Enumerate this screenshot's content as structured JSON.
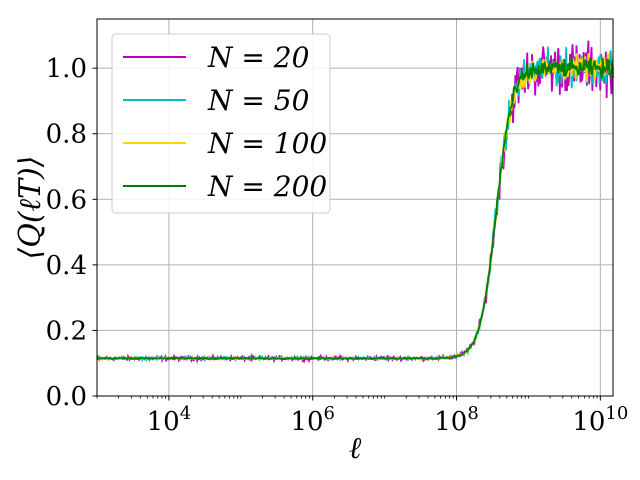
{
  "chart_data": {
    "type": "line",
    "xlabel": "ℓ",
    "ylabel": "⟨Q(ℓT)⟩",
    "xscale": "log",
    "xlim": [
      1000,
      15000000000
    ],
    "ylim": [
      0.0,
      1.15
    ],
    "grid": true,
    "legend_position": "top-left",
    "x_ticks": [
      {
        "value": 10000,
        "base": "10",
        "exp": "4"
      },
      {
        "value": 1000000,
        "base": "10",
        "exp": "6"
      },
      {
        "value": 100000000,
        "base": "10",
        "exp": "8"
      },
      {
        "value": 10000000000,
        "base": "10",
        "exp": "10"
      }
    ],
    "y_ticks": [
      "0.0",
      "0.2",
      "0.4",
      "0.6",
      "0.8",
      "1.0"
    ],
    "y_tick_values": [
      0.0,
      0.2,
      0.4,
      0.6,
      0.8,
      1.0
    ],
    "transition": {
      "baseline": 0.115,
      "plateau": 1.0,
      "midpoint_log10": 8.55
    },
    "series": [
      {
        "name": "N = 20",
        "color": "#c000c0",
        "noise": 0.05
      },
      {
        "name": "N = 50",
        "color": "#00c0c0",
        "noise": 0.035
      },
      {
        "name": "N = 100",
        "color": "#ffd700",
        "noise": 0.025
      },
      {
        "name": "N = 200",
        "color": "#008000",
        "noise": 0.018
      }
    ]
  }
}
